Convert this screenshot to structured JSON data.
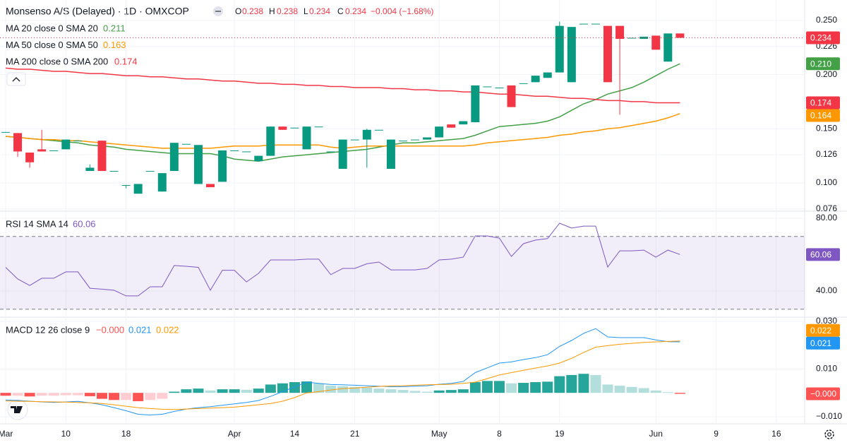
{
  "chart_data": [
    {
      "type": "candlestick",
      "title": "Monsenso A/S (Delayed) · 1D · OMXCOP",
      "ohlc_labels": [
        "O",
        "H",
        "L",
        "C"
      ],
      "change": "−0.004 (−1.68%)",
      "categories": [
        "Mar",
        null,
        null,
        null,
        null,
        "10",
        null,
        null,
        null,
        null,
        "18",
        null,
        null,
        null,
        null,
        null,
        null,
        null,
        null,
        "Apr",
        null,
        null,
        null,
        null,
        "14",
        null,
        null,
        null,
        null,
        "21",
        null,
        null,
        null,
        null,
        null,
        null,
        "May",
        null,
        null,
        null,
        null,
        "8",
        null,
        null,
        null,
        null,
        "19",
        null,
        null,
        null,
        null,
        null,
        null,
        null,
        "Jun",
        null,
        null
      ],
      "future_categories": [
        null,
        null,
        "9",
        null,
        null,
        null,
        null,
        "16"
      ],
      "open": [
        0.147,
        0.146,
        0.128,
        0.131,
        0.13,
        0.131,
        0.139,
        0.111,
        0.139,
        0.111,
        0.098,
        0.09,
        0.111,
        0.092,
        0.111,
        0.136,
        0.099,
        0.099,
        0.101,
        0.13,
        0.129,
        0.12,
        0.125,
        0.152,
        0.151,
        0.131,
        0.152,
        0.129,
        0.113,
        0.14,
        0.14,
        0.149,
        0.113,
        0.139,
        0.14,
        0.14,
        0.142,
        0.154,
        0.154,
        0.156,
        0.189,
        0.188,
        0.19,
        0.192,
        0.193,
        0.197,
        0.202,
        0.193,
        0.247,
        0.247,
        0.245,
        0.245,
        0.234,
        0.233,
        0.236,
        0.212,
        0.238
      ],
      "high": [
        0.147,
        0.146,
        0.128,
        0.149,
        0.13,
        0.14,
        0.139,
        0.117,
        0.139,
        0.111,
        0.098,
        0.099,
        0.111,
        0.109,
        0.137,
        0.136,
        0.135,
        0.099,
        0.13,
        0.13,
        0.129,
        0.125,
        0.152,
        0.152,
        0.151,
        0.152,
        0.152,
        0.129,
        0.14,
        0.14,
        0.15,
        0.149,
        0.14,
        0.139,
        0.14,
        0.142,
        0.152,
        0.154,
        0.157,
        0.19,
        0.189,
        0.188,
        0.19,
        0.192,
        0.199,
        0.202,
        0.249,
        0.244,
        0.247,
        0.247,
        0.245,
        0.245,
        0.234,
        0.235,
        0.236,
        0.238,
        0.238
      ],
      "low": [
        0.147,
        0.124,
        0.114,
        0.129,
        0.13,
        0.131,
        0.139,
        0.111,
        0.111,
        0.111,
        0.095,
        0.09,
        0.111,
        0.092,
        0.111,
        0.136,
        0.099,
        0.096,
        0.101,
        0.13,
        0.129,
        0.12,
        0.125,
        0.149,
        0.151,
        0.131,
        0.152,
        0.129,
        0.113,
        0.14,
        0.114,
        0.149,
        0.113,
        0.139,
        0.14,
        0.14,
        0.142,
        0.151,
        0.154,
        0.156,
        0.189,
        0.188,
        0.17,
        0.192,
        0.193,
        0.197,
        0.202,
        0.193,
        0.247,
        0.247,
        0.193,
        0.163,
        0.234,
        0.233,
        0.223,
        0.212,
        0.234
      ],
      "close": [
        0.147,
        0.129,
        0.119,
        0.129,
        0.13,
        0.14,
        0.139,
        0.114,
        0.111,
        0.111,
        0.098,
        0.099,
        0.111,
        0.109,
        0.137,
        0.136,
        0.135,
        0.096,
        0.13,
        0.13,
        0.129,
        0.125,
        0.152,
        0.149,
        0.151,
        0.152,
        0.152,
        0.129,
        0.14,
        0.14,
        0.149,
        0.149,
        0.14,
        0.139,
        0.14,
        0.142,
        0.152,
        0.151,
        0.157,
        0.19,
        0.189,
        0.188,
        0.17,
        0.192,
        0.199,
        0.202,
        0.245,
        0.244,
        0.247,
        0.247,
        0.193,
        0.233,
        0.234,
        0.235,
        0.223,
        0.238,
        0.234
      ],
      "up_color": "#089981",
      "down_color": "#f23645",
      "series": [
        {
          "name": "MA 20 close 0 SMA 20",
          "color": "#43a047",
          "legend_value": "0.211",
          "badge_label": "0.210",
          "values": [
            0.143,
            0.142,
            0.141,
            0.14,
            0.139,
            0.138,
            0.137,
            0.135,
            0.134,
            0.133,
            0.131,
            0.13,
            0.129,
            0.128,
            0.127,
            0.127,
            0.127,
            0.127,
            0.125,
            0.122,
            0.121,
            0.12,
            0.122,
            0.124,
            0.125,
            0.126,
            0.127,
            0.128,
            0.129,
            0.13,
            0.131,
            0.133,
            0.135,
            0.137,
            0.137,
            0.138,
            0.139,
            0.14,
            0.141,
            0.144,
            0.148,
            0.152,
            0.153,
            0.154,
            0.155,
            0.157,
            0.161,
            0.167,
            0.173,
            0.177,
            0.182,
            0.185,
            0.188,
            0.193,
            0.199,
            0.205,
            0.21
          ]
        },
        {
          "name": "MA 50 close 0 SMA 50",
          "color": "#ff9800",
          "legend_value": "0.163",
          "badge_label": "0.164",
          "values": [
            0.143,
            0.142,
            0.141,
            0.14,
            0.14,
            0.139,
            0.139,
            0.138,
            0.137,
            0.136,
            0.135,
            0.134,
            0.133,
            0.132,
            0.132,
            0.132,
            0.132,
            0.132,
            0.133,
            0.134,
            0.134,
            0.134,
            0.135,
            0.135,
            0.135,
            0.135,
            0.135,
            0.133,
            0.132,
            0.133,
            0.134,
            0.134,
            0.134,
            0.134,
            0.134,
            0.134,
            0.134,
            0.134,
            0.134,
            0.135,
            0.137,
            0.138,
            0.139,
            0.14,
            0.141,
            0.142,
            0.144,
            0.145,
            0.147,
            0.148,
            0.15,
            0.151,
            0.153,
            0.155,
            0.157,
            0.16,
            0.164
          ]
        },
        {
          "name": "MA 200 close 0 SMA 200",
          "color": "#f23645",
          "legend_value": "0.174",
          "badge_label": "0.174",
          "values": [
            0.206,
            0.205,
            0.205,
            0.204,
            0.203,
            0.203,
            0.202,
            0.201,
            0.201,
            0.2,
            0.199,
            0.199,
            0.198,
            0.198,
            0.197,
            0.196,
            0.196,
            0.195,
            0.194,
            0.194,
            0.193,
            0.192,
            0.192,
            0.191,
            0.191,
            0.19,
            0.19,
            0.189,
            0.189,
            0.188,
            0.188,
            0.188,
            0.187,
            0.187,
            0.186,
            0.186,
            0.185,
            0.185,
            0.184,
            0.184,
            0.183,
            0.182,
            0.182,
            0.181,
            0.18,
            0.18,
            0.179,
            0.178,
            0.178,
            0.177,
            0.176,
            0.176,
            0.175,
            0.175,
            0.174,
            0.174,
            0.174
          ]
        }
      ],
      "ylim": [
        0.0745,
        0.2689
      ],
      "yticks": [
        {
          "value": 0.25,
          "label": "0.250"
        },
        0.226,
        {
          "value": 0.2,
          "label": "0.200"
        },
        {
          "value": 0.15,
          "label": "0.150"
        },
        0.126,
        {
          "value": 0.1,
          "label": "0.100"
        },
        0.076
      ],
      "grid": true
    },
    {
      "type": "line",
      "name": "RSI 14 SMA 14",
      "color": "#7e57c2",
      "values": [
        53,
        46.6,
        43,
        47,
        47,
        50.5,
        50.5,
        41.5,
        41,
        40.4,
        37.3,
        37.3,
        42.3,
        42.3,
        54,
        53.6,
        53,
        40.4,
        51.4,
        51.4,
        45,
        49.7,
        57.1,
        57.1,
        57.1,
        57.5,
        57.5,
        49,
        52.4,
        52.4,
        55,
        55.9,
        51.6,
        51.6,
        51.6,
        52.4,
        57.1,
        57.5,
        58.6,
        70.3,
        70.3,
        69.1,
        59,
        66,
        68,
        68.8,
        77.3,
        74.6,
        75.7,
        75.7,
        53.2,
        62.1,
        62.1,
        62.5,
        58.6,
        62.5,
        60.06
      ],
      "ylim": [
        26,
        83.5
      ],
      "yticks": [
        {
          "value": 80,
          "label": "80.00"
        },
        {
          "value": 40,
          "label": "40.00"
        }
      ],
      "band": [
        30,
        70
      ],
      "band_color": "#7e57c2"
    },
    {
      "type": "macd",
      "name": "MACD 12 26 close 9",
      "legend_values": [
        "−0.000",
        "0.021",
        "0.022"
      ],
      "histogram": [
        -0.0012,
        -0.0012,
        -0.0015,
        -0.0012,
        -0.0012,
        -0.001,
        -0.001,
        -0.0014,
        -0.0025,
        -0.003,
        -0.003,
        -0.0035,
        -0.003,
        -0.0025,
        0.0005,
        0.0015,
        0.0018,
        0.001,
        0.0015,
        0.0015,
        0.0013,
        0.0018,
        0.0035,
        0.004,
        0.0045,
        0.0048,
        0.004,
        0.003,
        0.0028,
        0.0025,
        0.0022,
        0.0018,
        0.0015,
        0.0012,
        0.0008,
        0.0005,
        0.001,
        0.0012,
        0.0015,
        0.0045,
        0.005,
        0.005,
        0.004,
        0.0042,
        0.0045,
        0.0047,
        0.007,
        0.0075,
        0.008,
        0.0075,
        0.0035,
        0.003,
        0.0025,
        0.002,
        0.001,
        0.0003,
        -0.0004
      ],
      "histogram_colors": {
        "up_strong": "#26a69a",
        "up_weak": "#b2dfdb",
        "down_strong": "#ff5252",
        "down_weak": "#ffcdd2"
      },
      "macd": {
        "color": "#2196f3",
        "values": [
          -0.003,
          -0.0032,
          -0.0035,
          -0.0038,
          -0.004,
          -0.0038,
          -0.0036,
          -0.0042,
          -0.005,
          -0.0062,
          -0.0075,
          -0.009,
          -0.0093,
          -0.009,
          -0.0078,
          -0.0068,
          -0.0062,
          -0.0058,
          -0.0052,
          -0.0046,
          -0.004,
          -0.0032,
          -0.0015,
          0.0005,
          0.0025,
          0.0045,
          0.004,
          0.0035,
          0.0034,
          0.0032,
          0.003,
          0.0028,
          0.0026,
          0.0026,
          0.0028,
          0.003,
          0.0036,
          0.004,
          0.0048,
          0.0085,
          0.0105,
          0.0125,
          0.013,
          0.014,
          0.0148,
          0.016,
          0.0195,
          0.022,
          0.025,
          0.027,
          0.0235,
          0.0232,
          0.0232,
          0.0232,
          0.0222,
          0.0215,
          0.0214
        ]
      },
      "signal": {
        "color": "#ff9800",
        "values": [
          -0.0034,
          -0.0035,
          -0.0036,
          -0.0037,
          -0.0038,
          -0.0039,
          -0.004,
          -0.0042,
          -0.0045,
          -0.005,
          -0.0056,
          -0.0062,
          -0.0066,
          -0.0069,
          -0.007,
          -0.0068,
          -0.0066,
          -0.0064,
          -0.0062,
          -0.006,
          -0.0055,
          -0.005,
          -0.0045,
          -0.0035,
          -0.002,
          0,
          0.0005,
          0.0012,
          0.0018,
          0.002,
          0.0024,
          0.0027,
          0.0029,
          0.003,
          0.0032,
          0.0034,
          0.0035,
          0.0036,
          0.004,
          0.0045,
          0.006,
          0.0075,
          0.0085,
          0.0095,
          0.0104,
          0.0113,
          0.0125,
          0.0145,
          0.017,
          0.0192,
          0.0198,
          0.0204,
          0.0208,
          0.0212,
          0.0214,
          0.0216,
          0.0218
        ]
      },
      "ylim": [
        -0.013,
        0.0315
      ],
      "yticks": [
        {
          "value": 0.03,
          "label": "0.030"
        },
        {
          "value": 0.01,
          "label": "0.010"
        },
        {
          "value": -0.01,
          "label": "−0.010"
        }
      ]
    }
  ]
}
